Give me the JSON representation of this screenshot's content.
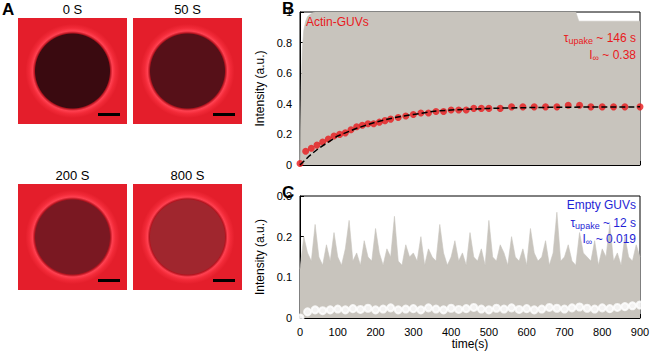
{
  "images": {
    "panel_label": "A",
    "frames": [
      {
        "label": "0 S"
      },
      {
        "label": "50 S"
      },
      {
        "label": "200 S"
      },
      {
        "label": "800 S"
      }
    ]
  },
  "chart_data": [
    {
      "type": "line",
      "panel_label": "B",
      "ylabel": "Intensity (a.u.)",
      "xlim": [
        0,
        900
      ],
      "xticks": [
        0,
        100,
        200,
        300,
        400,
        500,
        600,
        700,
        800,
        900
      ],
      "ylim": [
        0,
        1
      ],
      "yticks": [
        0,
        0.2,
        0.4,
        0.6,
        0.8,
        1
      ],
      "grid": false,
      "tick_labels": "y",
      "annotations": [
        {
          "color": "#e8191c",
          "parts": [
            {
              "text": "Actin-GUVs"
            }
          ]
        },
        {
          "color": "#e8191c",
          "parts": [
            {
              "text": "τ"
            },
            {
              "text": "upake",
              "sub": true
            },
            {
              "text": " ~ 146 s"
            }
          ]
        },
        {
          "color": "#e8191c",
          "parts": [
            {
              "text": "I"
            },
            {
              "text": "∞",
              "sub": true
            },
            {
              "text": " ~ 0.38"
            }
          ]
        }
      ],
      "series": [
        {
          "type": "area",
          "color": "#c8c4bd",
          "x": [
            0,
            3,
            6,
            10,
            15,
            20,
            30,
            40,
            60,
            730,
            738,
            900
          ],
          "values": [
            0,
            0.5,
            0.75,
            0.88,
            0.94,
            0.97,
            0.99,
            1,
            1,
            1,
            0.94,
            0.94
          ]
        },
        {
          "type": "scatter",
          "color": "#e8191c",
          "marker": "circle",
          "x": [
            0,
            15,
            30,
            45,
            60,
            75,
            90,
            105,
            120,
            135,
            150,
            165,
            180,
            195,
            210,
            225,
            240,
            260,
            280,
            300,
            320,
            340,
            360,
            380,
            400,
            420,
            440,
            460,
            480,
            500,
            530,
            560,
            590,
            620,
            650,
            680,
            710,
            740,
            770,
            800,
            830,
            860,
            900
          ],
          "values": [
            0.01,
            0.09,
            0.11,
            0.13,
            0.15,
            0.17,
            0.19,
            0.2,
            0.21,
            0.23,
            0.25,
            0.26,
            0.27,
            0.27,
            0.28,
            0.29,
            0.3,
            0.31,
            0.32,
            0.33,
            0.34,
            0.34,
            0.35,
            0.35,
            0.36,
            0.36,
            0.36,
            0.37,
            0.37,
            0.37,
            0.37,
            0.38,
            0.38,
            0.38,
            0.38,
            0.38,
            0.39,
            0.39,
            0.38,
            0.38,
            0.38,
            0.38,
            0.38
          ]
        },
        {
          "type": "line",
          "color": "#000000",
          "line_style": "dashed",
          "x": [
            0,
            25,
            50,
            75,
            100,
            150,
            200,
            250,
            300,
            350,
            400,
            500,
            600,
            700,
            800,
            900
          ],
          "values": [
            0,
            0.06,
            0.11,
            0.15,
            0.19,
            0.24,
            0.28,
            0.31,
            0.33,
            0.35,
            0.36,
            0.37,
            0.375,
            0.378,
            0.379,
            0.38
          ]
        }
      ]
    },
    {
      "type": "line",
      "panel_label": "C",
      "xlabel": "time(s)",
      "ylabel": "Intensity (a.u.)",
      "xlim": [
        0,
        900
      ],
      "xticks": [
        0,
        100,
        200,
        300,
        400,
        500,
        600,
        700,
        800,
        900
      ],
      "ylim": [
        0,
        0.3
      ],
      "yticks": [
        0,
        0.1,
        0.2,
        0.3
      ],
      "grid": false,
      "tick_labels": true,
      "annotations": [
        {
          "color": "#1f1fd6",
          "parts": [
            {
              "text": "Empty GUVs"
            }
          ]
        },
        {
          "color": "#1f1fd6",
          "parts": [
            {
              "text": "τ"
            },
            {
              "text": "upake",
              "sub": true
            },
            {
              "text": " ~ 12 s"
            }
          ]
        },
        {
          "color": "#1f1fd6",
          "parts": [
            {
              "text": "I"
            },
            {
              "text": "∞",
              "sub": true
            },
            {
              "text": " ~ 0.019"
            }
          ]
        }
      ],
      "series": [
        {
          "type": "area",
          "color": "#c8c4bd",
          "x": [
            0,
            10,
            20,
            30,
            40,
            50,
            60,
            70,
            80,
            90,
            100,
            110,
            120,
            130,
            140,
            150,
            160,
            170,
            180,
            190,
            200,
            210,
            220,
            230,
            240,
            250,
            260,
            270,
            280,
            290,
            300,
            310,
            320,
            330,
            340,
            350,
            360,
            370,
            380,
            390,
            400,
            410,
            420,
            430,
            440,
            450,
            460,
            470,
            480,
            490,
            500,
            510,
            520,
            530,
            540,
            550,
            560,
            570,
            580,
            590,
            600,
            610,
            620,
            630,
            640,
            650,
            660,
            670,
            680,
            690,
            700,
            710,
            720,
            730,
            740,
            750,
            760,
            770,
            780,
            790,
            800,
            810,
            820,
            830,
            840,
            850,
            860,
            870,
            880,
            890,
            900
          ],
          "values": [
            0.12,
            0.2,
            0.16,
            0.14,
            0.23,
            0.15,
            0.13,
            0.18,
            0.14,
            0.21,
            0.15,
            0.13,
            0.17,
            0.24,
            0.14,
            0.16,
            0.13,
            0.19,
            0.15,
            0.14,
            0.22,
            0.16,
            0.13,
            0.17,
            0.15,
            0.25,
            0.14,
            0.13,
            0.18,
            0.15,
            0.16,
            0.14,
            0.2,
            0.13,
            0.17,
            0.15,
            0.14,
            0.23,
            0.16,
            0.13,
            0.15,
            0.19,
            0.14,
            0.16,
            0.13,
            0.21,
            0.15,
            0.14,
            0.17,
            0.13,
            0.24,
            0.15,
            0.14,
            0.18,
            0.16,
            0.13,
            0.2,
            0.15,
            0.14,
            0.17,
            0.13,
            0.22,
            0.16,
            0.14,
            0.15,
            0.19,
            0.13,
            0.16,
            0.26,
            0.14,
            0.15,
            0.18,
            0.14,
            0.13,
            0.21,
            0.16,
            0.15,
            0.14,
            0.19,
            0.13,
            0.17,
            0.15,
            0.23,
            0.14,
            0.16,
            0.13,
            0.2,
            0.15,
            0.14,
            0.18,
            0.15
          ]
        },
        {
          "type": "scatter",
          "color": "#1f1fd6",
          "marker": "open_circle",
          "x": [
            0,
            20,
            40,
            60,
            80,
            100,
            120,
            140,
            160,
            180,
            200,
            220,
            240,
            260,
            280,
            300,
            320,
            340,
            360,
            380,
            400,
            420,
            440,
            460,
            480,
            500,
            520,
            540,
            560,
            580,
            600,
            620,
            640,
            660,
            680,
            700,
            720,
            740,
            760,
            780,
            800,
            820,
            840,
            860,
            880,
            900
          ],
          "values": [
            0,
            0.015,
            0.02,
            0.018,
            0.02,
            0.022,
            0.02,
            0.023,
            0.021,
            0.024,
            0.02,
            0.022,
            0.025,
            0.02,
            0.022,
            0.023,
            0.02,
            0.025,
            0.022,
            0.02,
            0.024,
            0.021,
            0.023,
            0.026,
            0.022,
            0.02,
            0.024,
            0.022,
            0.025,
            0.021,
            0.023,
            0.02,
            0.022,
            0.026,
            0.024,
            0.022,
            0.025,
            0.027,
            0.024,
            0.022,
            0.025,
            0.023,
            0.026,
            0.028,
            0.03,
            0.032
          ]
        }
      ]
    }
  ]
}
